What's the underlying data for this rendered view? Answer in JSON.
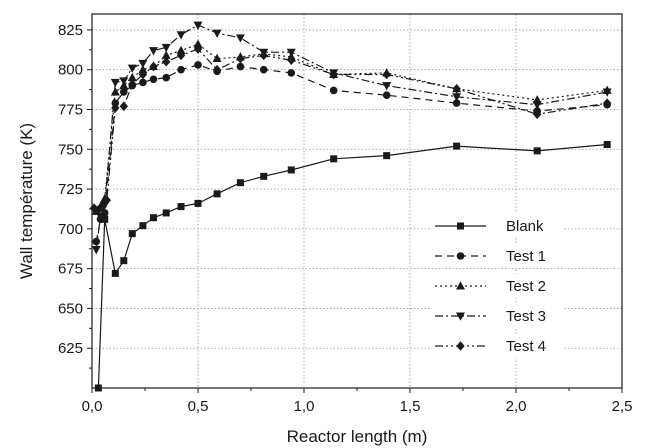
{
  "chart_data": {
    "type": "line",
    "title": "",
    "xlabel": "Reactor length (m)",
    "ylabel": "Wall température (K)",
    "xlim": [
      0,
      2.5
    ],
    "ylim": [
      600,
      835
    ],
    "x_ticks": [
      0,
      0.5,
      1.0,
      1.5,
      2.0,
      2.5
    ],
    "x_tick_labels": [
      "0,0",
      "0,5",
      "1,0",
      "1,5",
      "2,0",
      "2,5"
    ],
    "y_ticks": [
      625,
      650,
      675,
      700,
      725,
      750,
      775,
      800,
      825
    ],
    "y_tick_labels": [
      "625",
      "650",
      "675",
      "700",
      "725",
      "750",
      "775",
      "800",
      "825"
    ],
    "grid": true,
    "legend_position": "lower-right",
    "series": [
      {
        "name": "Blank",
        "line_style": "solid",
        "marker": "square",
        "x": [
          0.03,
          0.06,
          0.11,
          0.15,
          0.19,
          0.24,
          0.29,
          0.35,
          0.42,
          0.5,
          0.59,
          0.7,
          0.81,
          0.94,
          1.14,
          1.39,
          1.72,
          2.1,
          2.43
        ],
        "y": [
          600,
          706,
          672,
          680,
          697,
          702,
          707,
          710,
          714,
          716,
          722,
          729,
          733,
          737,
          744,
          746,
          752,
          749,
          753
        ]
      },
      {
        "name": "Test 1",
        "line_style": "dashed",
        "marker": "circle",
        "x": [
          0.02,
          0.04,
          0.06,
          0.11,
          0.15,
          0.19,
          0.24,
          0.29,
          0.35,
          0.42,
          0.5,
          0.59,
          0.7,
          0.81,
          0.94,
          1.14,
          1.39,
          1.72,
          2.1,
          2.43
        ],
        "y": [
          692,
          706,
          710,
          779,
          786,
          790,
          792,
          794,
          795,
          800,
          803,
          799,
          802,
          800,
          798,
          787,
          784,
          779,
          774,
          778
        ]
      },
      {
        "name": "Test 2",
        "line_style": "dotted",
        "marker": "triangle-up",
        "x": [
          0.02,
          0.04,
          0.06,
          0.11,
          0.15,
          0.19,
          0.24,
          0.29,
          0.35,
          0.42,
          0.5,
          0.59,
          0.7,
          0.81,
          0.94,
          1.14,
          1.39,
          1.72,
          2.1,
          2.43
        ],
        "y": [
          711,
          714,
          719,
          786,
          790,
          795,
          800,
          802,
          809,
          812,
          816,
          807,
          808,
          810,
          808,
          797,
          798,
          788,
          781,
          787
        ]
      },
      {
        "name": "Test 3",
        "line_style": "dash-dot",
        "marker": "triangle-down",
        "x": [
          0.02,
          0.04,
          0.06,
          0.11,
          0.15,
          0.19,
          0.24,
          0.29,
          0.35,
          0.42,
          0.5,
          0.59,
          0.7,
          0.81,
          0.94,
          1.14,
          1.39,
          1.72,
          2.1,
          2.43
        ],
        "y": [
          687,
          708,
          715,
          792,
          793,
          801,
          804,
          812,
          814,
          822,
          828,
          823,
          820,
          811,
          811,
          798,
          790,
          783,
          778,
          786
        ]
      },
      {
        "name": "Test 4",
        "line_style": "dash-dot-dot",
        "marker": "diamond",
        "x": [
          0.01,
          0.03,
          0.05,
          0.07,
          0.11,
          0.15,
          0.19,
          0.24,
          0.29,
          0.35,
          0.42,
          0.5,
          0.59,
          0.7,
          0.81,
          0.94,
          1.14,
          1.39,
          1.72,
          2.1,
          2.43
        ],
        "y": [
          713,
          712,
          714,
          718,
          776,
          777,
          791,
          797,
          802,
          805,
          809,
          813,
          800,
          807,
          809,
          806,
          797,
          797,
          788,
          772,
          779
        ]
      }
    ]
  }
}
